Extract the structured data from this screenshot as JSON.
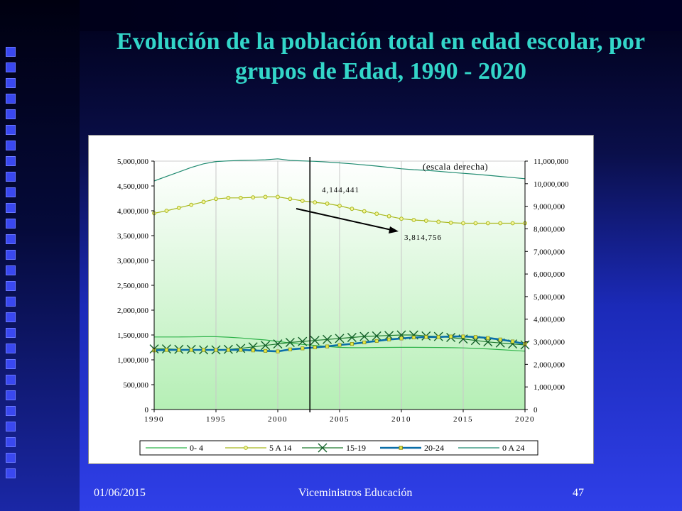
{
  "slide": {
    "title": "Evolución de la población total en edad escolar, por grupos de Edad, 1990 - 2020",
    "footer_date": "01/06/2015",
    "footer_center": "Viceministros Educación",
    "footer_page": "47"
  },
  "colors": {
    "title": "#33d6c9",
    "plot_bg_top": "#ffffff",
    "plot_bg_bottom": "#b7f0b7",
    "series_0_4": "#2fb34a",
    "series_5_14": "#a8b81e",
    "series_15_19": "#1e7a2e",
    "series_20_24": "#0a6ea8",
    "series_0_24": "#1f8a70"
  },
  "chart_data": {
    "type": "line",
    "title": "",
    "x": [
      1990,
      1991,
      1992,
      1993,
      1994,
      1995,
      1996,
      1997,
      1998,
      1999,
      2000,
      2001,
      2002,
      2003,
      2004,
      2005,
      2006,
      2007,
      2008,
      2009,
      2010,
      2011,
      2012,
      2013,
      2014,
      2015,
      2016,
      2017,
      2018,
      2019,
      2020
    ],
    "x_ticks": [
      "1990",
      "1995",
      "2000",
      "2005",
      "2010",
      "2015",
      "2020"
    ],
    "ylim_left": [
      0,
      5000000
    ],
    "y_ticks_left": [
      "0",
      "500,000",
      "1,000,000",
      "1,500,000",
      "2,000,000",
      "2,500,000",
      "3,000,000",
      "3,500,000",
      "4,000,000",
      "4,500,000",
      "5,000,000"
    ],
    "ylim_right": [
      0,
      11000000
    ],
    "y_ticks_right": [
      "0",
      "1,000,000",
      "2,000,000",
      "3,000,000",
      "4,000,000",
      "5,000,000",
      "6,000,000",
      "7,000,000",
      "8,000,000",
      "9,000,000",
      "10,000,000",
      "11,000,000"
    ],
    "grid": "vertical",
    "legend_position": "bottom",
    "series": [
      {
        "name": "0- 4",
        "axis": "left",
        "values": [
          1460000,
          1460000,
          1460000,
          1462000,
          1465000,
          1465000,
          1455000,
          1440000,
          1420000,
          1400000,
          1370000,
          1340000,
          1310000,
          1290000,
          1270000,
          1250000,
          1245000,
          1245000,
          1248000,
          1250000,
          1252000,
          1252000,
          1250000,
          1248000,
          1245000,
          1240000,
          1230000,
          1220000,
          1205000,
          1190000,
          1175000
        ]
      },
      {
        "name": "5 A 14",
        "axis": "left",
        "values": [
          3950000,
          4000000,
          4060000,
          4120000,
          4180000,
          4240000,
          4260000,
          4260000,
          4270000,
          4280000,
          4280000,
          4240000,
          4200000,
          4170000,
          4144441,
          4100000,
          4040000,
          3990000,
          3940000,
          3890000,
          3840000,
          3814756,
          3800000,
          3780000,
          3760000,
          3750000,
          3750000,
          3750000,
          3750000,
          3750000,
          3750000
        ]
      },
      {
        "name": "15-19",
        "axis": "left",
        "values": [
          1220000,
          1220000,
          1210000,
          1210000,
          1200000,
          1200000,
          1210000,
          1230000,
          1260000,
          1290000,
          1320000,
          1350000,
          1370000,
          1390000,
          1410000,
          1430000,
          1450000,
          1470000,
          1480000,
          1490000,
          1500000,
          1500000,
          1480000,
          1470000,
          1450000,
          1420000,
          1390000,
          1360000,
          1340000,
          1320000,
          1300000
        ]
      },
      {
        "name": "20-24",
        "axis": "left",
        "values": [
          1190000,
          1200000,
          1200000,
          1200000,
          1200000,
          1200000,
          1200000,
          1200000,
          1190000,
          1180000,
          1170000,
          1210000,
          1230000,
          1250000,
          1270000,
          1300000,
          1320000,
          1350000,
          1380000,
          1410000,
          1430000,
          1450000,
          1460000,
          1460000,
          1470000,
          1470000,
          1460000,
          1440000,
          1410000,
          1370000,
          1320000
        ]
      },
      {
        "name": "0 A 24",
        "axis": "right",
        "values": [
          10120000,
          10320000,
          10520000,
          10720000,
          10880000,
          10980000,
          11010000,
          11030000,
          11040000,
          11060000,
          11100000,
          11030000,
          11010000,
          10990000,
          10960000,
          10920000,
          10880000,
          10830000,
          10780000,
          10720000,
          10660000,
          10620000,
          10590000,
          10550000,
          10500000,
          10460000,
          10420000,
          10370000,
          10320000,
          10270000,
          10220000
        ]
      }
    ],
    "annotations": [
      {
        "text": "(escala derecha)"
      },
      {
        "text": "4,144,441"
      },
      {
        "text": "3,814,756"
      }
    ],
    "marker_line_year": 2002.6
  }
}
